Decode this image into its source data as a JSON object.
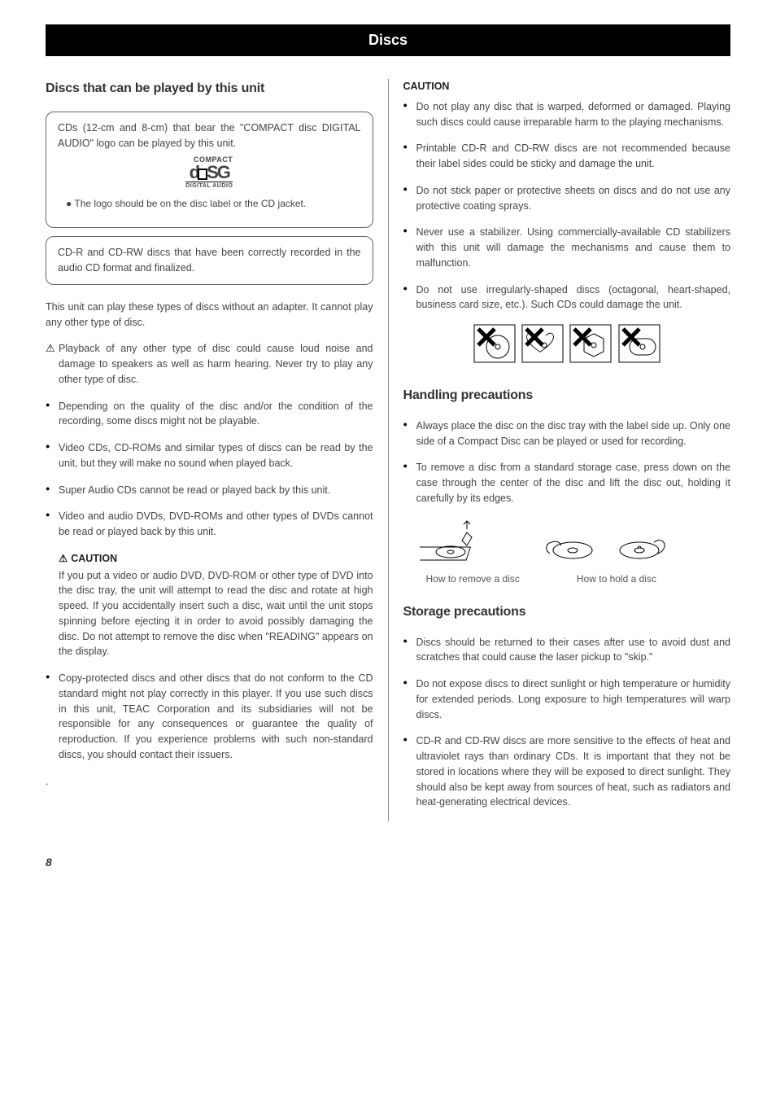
{
  "banner": "Discs",
  "left": {
    "h_discs_played": "Discs that can be played by this unit",
    "box1_text": "CDs (12-cm and 8-cm) that bear the \"COMPACT disc DIGITAL AUDIO\" logo can be played by this unit.",
    "logo": {
      "top": "COMPACT",
      "mid": "disc",
      "bot": "DIGITAL AUDIO"
    },
    "box1_sub": "The logo should be on the disc label or the CD jacket.",
    "box2_text": "CD-R and CD-RW discs that have been correctly recorded in the audio CD format and finalized.",
    "para_intro": "This unit can play these types of discs without an adapter. It cannot play any other type of disc.",
    "bullets": [
      {
        "warn": true,
        "text": "Playback of any other type of disc could cause loud noise and damage to speakers as well as harm hearing. Never try to play any other type of disc."
      },
      {
        "warn": false,
        "text": "Depending on the quality of the disc and/or the condition of the recording, some discs might not be playable."
      },
      {
        "warn": false,
        "text": "Video CDs, CD-ROMs and similar types of discs can be read by the unit, but they will make no sound when played back."
      },
      {
        "warn": false,
        "text": "Super Audio CDs cannot be read or played back by this unit."
      },
      {
        "warn": false,
        "text": "Video and audio DVDs, DVD-ROMs and other types of DVDs cannot be read or played back by this unit."
      }
    ],
    "caution_label": "CAUTION",
    "caution_body": "If you put a video or audio DVD, DVD-ROM or other type of DVD into the disc tray, the unit will attempt to read the disc and rotate at high speed. If you accidentally insert such a disc, wait until the unit stops spinning before ejecting it in order to avoid possibly damaging the disc. Do not attempt to remove the disc when \"READING\" appears on the display.",
    "copy_protect": "Copy-protected discs and other discs that do not conform to the CD standard might not play correctly in this player. If you use such discs in this unit, TEAC Corporation and its subsidiaries will not be responsible for any consequences or guarantee the quality of reproduction. If you experience problems with such non-standard discs, you should contact their issuers."
  },
  "right": {
    "caution_label": "CAUTION",
    "caution_bullets": [
      "Do not play any disc that is warped, deformed or damaged. Playing such discs could cause irreparable harm to the playing mechanisms.",
      "Printable CD-R and CD-RW discs are not recommended because their label sides could be sticky and damage the unit.",
      "Do not stick paper or protective sheets on discs and do not use any protective coating sprays.",
      "Never use a stabilizer. Using commercially-available CD stabilizers with this unit will damage the mechanisms and cause them to malfunction.",
      "Do not use irregularly-shaped discs (octagonal, heart-shaped, business card size, etc.). Such CDs could damage the unit."
    ],
    "h_handling": "Handling precautions",
    "handling_bullets": [
      "Always place the disc on the disc tray with the label side up. Only one side of a Compact Disc can be played or used for recording.",
      "To remove a disc from a standard storage case, press down on the case through the center of the disc and lift the disc out, holding it carefully by its edges."
    ],
    "cap_remove": "How to remove a disc",
    "cap_hold": "How to hold a disc",
    "h_storage": "Storage precautions",
    "storage_bullets": [
      "Discs should be returned to their cases after use to avoid dust and scratches that could cause the laser pickup to \"skip.\"",
      "Do not expose discs to direct sunlight or high temperature or humidity for extended periods. Long exposure to high temperatures will warp discs.",
      "CD-R and CD-RW discs are more sensitive to the effects of heat and ultraviolet rays than ordinary CDs. It is important that they not be stored in locations where they will be exposed to direct sunlight. They should also be kept away from sources of heat, such as radiators and heat-generating electrical devices."
    ]
  },
  "page_number": "8"
}
